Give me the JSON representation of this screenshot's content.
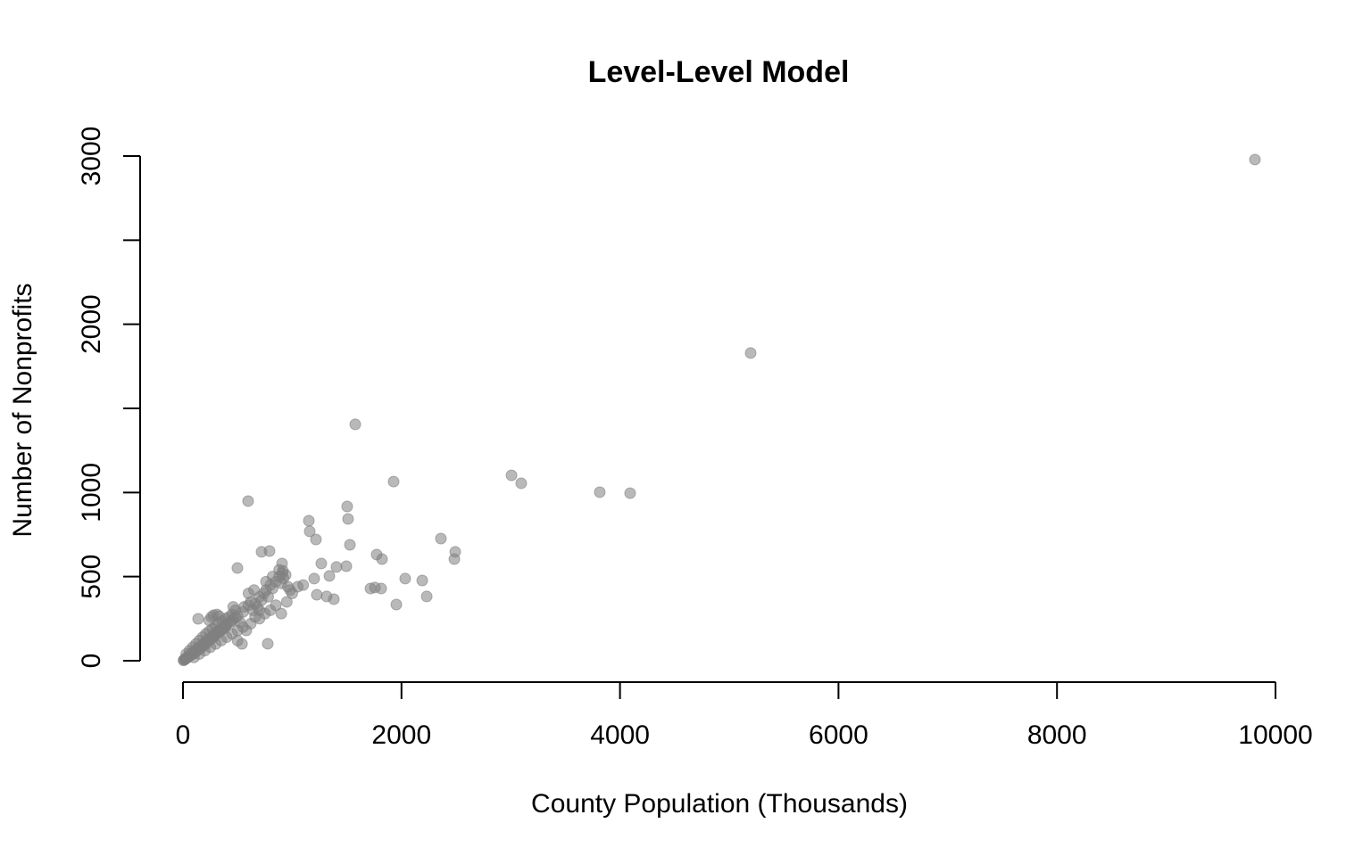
{
  "chart_data": {
    "type": "scatter",
    "title": "Level-Level Model",
    "xlabel": "County Population (Thousands)",
    "ylabel": "Number of Nonprofits",
    "xlim": [
      0,
      10000
    ],
    "ylim": [
      0,
      3000
    ],
    "xticks": [
      0,
      2000,
      4000,
      6000,
      8000,
      10000
    ],
    "xtick_labels": [
      "0",
      "2000",
      "4000",
      "6000",
      "8000",
      "10000"
    ],
    "yticks": [
      0,
      500,
      1000,
      1500,
      2000,
      2500,
      3000
    ],
    "ytick_labels": [
      "0",
      "500",
      "1000",
      "",
      "2000",
      "",
      "3000"
    ],
    "grid": false,
    "point_color": "#808080",
    "points": [
      [
        9812,
        2979
      ],
      [
        5196,
        1829
      ],
      [
        1577,
        1405
      ],
      [
        1928,
        1065
      ],
      [
        3007,
        1102
      ],
      [
        3096,
        1055
      ],
      [
        3815,
        1002
      ],
      [
        4093,
        996
      ],
      [
        596,
        949
      ],
      [
        1503,
        917
      ],
      [
        1511,
        843
      ],
      [
        1152,
        832
      ],
      [
        1160,
        769
      ],
      [
        1217,
        721
      ],
      [
        2361,
        726
      ],
      [
        2492,
        647
      ],
      [
        2484,
        604
      ],
      [
        1528,
        689
      ],
      [
        1773,
        631
      ],
      [
        1822,
        604
      ],
      [
        719,
        647
      ],
      [
        792,
        652
      ],
      [
        498,
        551
      ],
      [
        1266,
        578
      ],
      [
        1405,
        557
      ],
      [
        1495,
        562
      ],
      [
        2034,
        488
      ],
      [
        2190,
        477
      ],
      [
        2231,
        382
      ],
      [
        1953,
        334
      ],
      [
        1716,
        429
      ],
      [
        1757,
        435
      ],
      [
        1814,
        429
      ],
      [
        1201,
        488
      ],
      [
        1340,
        504
      ],
      [
        1225,
        392
      ],
      [
        1315,
        382
      ],
      [
        1381,
        366
      ],
      [
        907,
        578
      ],
      [
        915,
        535
      ],
      [
        139,
        249
      ],
      [
        776,
        101
      ],
      [
        5,
        2
      ],
      [
        10,
        5
      ],
      [
        15,
        8
      ],
      [
        20,
        10
      ],
      [
        25,
        12
      ],
      [
        30,
        15
      ],
      [
        35,
        18
      ],
      [
        40,
        20
      ],
      [
        45,
        22
      ],
      [
        50,
        25
      ],
      [
        55,
        28
      ],
      [
        60,
        30
      ],
      [
        65,
        30
      ],
      [
        70,
        35
      ],
      [
        75,
        40
      ],
      [
        80,
        38
      ],
      [
        85,
        45
      ],
      [
        90,
        48
      ],
      [
        95,
        42
      ],
      [
        100,
        55
      ],
      [
        110,
        50
      ],
      [
        120,
        65
      ],
      [
        130,
        60
      ],
      [
        140,
        75
      ],
      [
        150,
        70
      ],
      [
        160,
        85
      ],
      [
        170,
        80
      ],
      [
        180,
        95
      ],
      [
        190,
        90
      ],
      [
        200,
        110
      ],
      [
        210,
        100
      ],
      [
        220,
        120
      ],
      [
        230,
        115
      ],
      [
        240,
        130
      ],
      [
        250,
        125
      ],
      [
        260,
        140
      ],
      [
        270,
        135
      ],
      [
        280,
        150
      ],
      [
        290,
        145
      ],
      [
        300,
        165
      ],
      [
        310,
        160
      ],
      [
        320,
        175
      ],
      [
        330,
        170
      ],
      [
        340,
        185
      ],
      [
        350,
        180
      ],
      [
        360,
        195
      ],
      [
        370,
        190
      ],
      [
        380,
        205
      ],
      [
        390,
        200
      ],
      [
        400,
        215
      ],
      [
        420,
        225
      ],
      [
        440,
        235
      ],
      [
        460,
        245
      ],
      [
        480,
        255
      ],
      [
        500,
        265
      ],
      [
        30,
        40
      ],
      [
        60,
        60
      ],
      [
        90,
        80
      ],
      [
        120,
        100
      ],
      [
        150,
        120
      ],
      [
        180,
        140
      ],
      [
        210,
        160
      ],
      [
        240,
        175
      ],
      [
        270,
        190
      ],
      [
        300,
        205
      ],
      [
        330,
        220
      ],
      [
        360,
        235
      ],
      [
        390,
        250
      ],
      [
        420,
        260
      ],
      [
        450,
        275
      ],
      [
        100,
        20
      ],
      [
        150,
        40
      ],
      [
        200,
        60
      ],
      [
        250,
        80
      ],
      [
        300,
        100
      ],
      [
        350,
        120
      ],
      [
        400,
        140
      ],
      [
        450,
        160
      ],
      [
        500,
        180
      ],
      [
        550,
        200
      ],
      [
        280,
        270
      ],
      [
        310,
        275
      ],
      [
        330,
        265
      ],
      [
        260,
        260
      ],
      [
        240,
        240
      ],
      [
        550,
        290
      ],
      [
        600,
        330
      ],
      [
        620,
        350
      ],
      [
        640,
        300
      ],
      [
        660,
        340
      ],
      [
        680,
        320
      ],
      [
        700,
        380
      ],
      [
        720,
        360
      ],
      [
        740,
        400
      ],
      [
        760,
        420
      ],
      [
        780,
        380
      ],
      [
        800,
        450
      ],
      [
        820,
        430
      ],
      [
        850,
        470
      ],
      [
        880,
        500
      ],
      [
        900,
        460
      ],
      [
        920,
        490
      ],
      [
        940,
        510
      ],
      [
        960,
        440
      ],
      [
        980,
        420
      ],
      [
        1000,
        400
      ],
      [
        1050,
        440
      ],
      [
        1100,
        450
      ],
      [
        700,
        250
      ],
      [
        750,
        280
      ],
      [
        800,
        300
      ],
      [
        850,
        330
      ],
      [
        900,
        280
      ],
      [
        950,
        350
      ],
      [
        650,
        420
      ],
      [
        600,
        400
      ],
      [
        560,
        320
      ],
      [
        520,
        230
      ],
      [
        480,
        300
      ],
      [
        460,
        320
      ],
      [
        580,
        180
      ],
      [
        620,
        220
      ],
      [
        660,
        260
      ],
      [
        700,
        300
      ],
      [
        540,
        100
      ],
      [
        500,
        120
      ],
      [
        760,
        470
      ],
      [
        820,
        500
      ],
      [
        880,
        540
      ],
      [
        910,
        520
      ]
    ]
  }
}
